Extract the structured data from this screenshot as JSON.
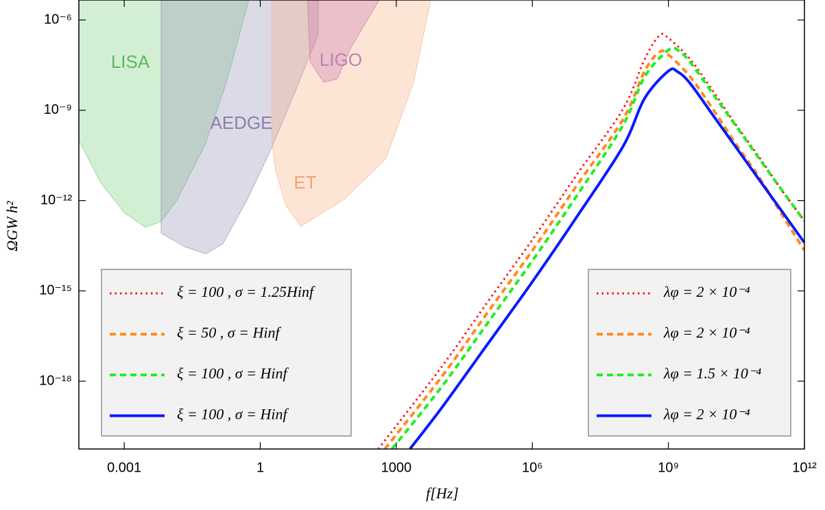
{
  "chart_data": {
    "type": "line",
    "xlabel": "f[Hz]",
    "ylabel": "ΩGW h²",
    "log_x": true,
    "log_y": true,
    "xlim": [
      0.0001,
      1000000000000
    ],
    "ylim": [
      5.6e-21,
      4.6e-06
    ],
    "xticks": [
      0.001,
      1,
      1000,
      {
        "value": 1000000,
        "label": "10⁶"
      },
      {
        "value": 1000000000,
        "label": "10⁹"
      },
      {
        "value": 1000000000000,
        "label": "10¹²"
      }
    ],
    "yticks": [
      {
        "value": 1e-06,
        "label": "10⁻⁶"
      },
      {
        "value": 1e-09,
        "label": "10⁻⁹"
      },
      {
        "value": 1e-12,
        "label": "10⁻¹²"
      },
      {
        "value": 1e-15,
        "label": "10⁻¹⁵"
      },
      {
        "value": 1e-18,
        "label": "10⁻¹⁸"
      }
    ],
    "regions": [
      {
        "name": "LISA",
        "color": "#6cc96c",
        "text_color": "#5cb85c",
        "x": [
          0.0001,
          0.0003,
          0.001,
          0.0029,
          0.0065,
          0.015,
          0.063,
          0.18,
          0.56
        ],
        "values": [
          1e-10,
          4e-12,
          4e-13,
          1.3e-13,
          2e-13,
          1.1e-12,
          8e-11,
          8.5e-09,
          4.6e-06
        ]
      },
      {
        "name": "AEDGE",
        "color": "#8f86b3",
        "text_color": "#8a80a8",
        "x": [
          0.0065,
          0.0065,
          0.022,
          0.063,
          0.15,
          0.52,
          1.8,
          6.2,
          19,
          19
        ],
        "values": [
          4.6e-06,
          8.3e-14,
          2.9e-14,
          1.7e-14,
          3.7e-14,
          1.1e-12,
          5.8e-11,
          5e-09,
          3.3e-07,
          4.6e-06
        ]
      },
      {
        "name": "ET",
        "color": "#f9a878",
        "text_color": "#f5a070",
        "x": [
          1.8,
          1.8,
          2.2,
          3.7,
          7.8,
          71,
          590,
          2400,
          5750
        ],
        "values": [
          4.6e-06,
          1e-10,
          9.3e-12,
          6.8e-13,
          1.4e-13,
          1.1e-12,
          2.5e-11,
          8.5e-09,
          4.6e-06
        ]
      },
      {
        "name": "LIGO",
        "color": "#c86aa8",
        "text_color": "#c080b0",
        "x": [
          11,
          12.6,
          25,
          50,
          100,
          420
        ],
        "values": [
          4.6e-06,
          4.1e-08,
          8.5e-09,
          1.1e-08,
          1.2e-07,
          4.6e-06
        ]
      }
    ],
    "series": [
      {
        "name": "ξ = 100 , σ = 1.25Hinf",
        "param": "λφ = 2 × 10⁻⁴",
        "color": "#ff1010",
        "style": "dotted",
        "x": [
          400,
          10000,
          100000,
          1000000,
          10000000,
          100000000,
          300000000,
          630000000,
          1000000000,
          3000000000,
          10000000000,
          30000000000,
          100000000000,
          300000000000,
          1000000000000
        ],
        "values": [
          5.6e-21,
          3e-18,
          4e-16,
          5e-14,
          8e-12,
          1.1e-09,
          5e-08,
          3e-07,
          2.5e-07,
          5e-08,
          4e-09,
          3.5e-10,
          2.8e-11,
          2.5e-12,
          2.1e-13
        ]
      },
      {
        "name": "ξ = 50 , σ = Hinf",
        "param": "λφ = 2 × 10⁻⁴",
        "color": "#ff8a1c",
        "style": "dashed",
        "x": [
          560,
          10000,
          100000,
          1000000,
          10000000,
          100000000,
          300000000,
          630000000,
          1000000000,
          3000000000,
          10000000000,
          30000000000,
          100000000000,
          300000000000,
          1000000000000
        ],
        "values": [
          5.6e-21,
          1.4e-18,
          1.8e-16,
          2.2e-14,
          3.5e-12,
          5e-10,
          2e-08,
          8.5e-08,
          7e-08,
          1.3e-08,
          1e-09,
          8e-11,
          6e-12,
          4e-13,
          2.2e-14
        ]
      },
      {
        "name": "ξ = 100 , σ = Hinf",
        "param": "λφ = 1.5 × 10⁻⁴",
        "color": "#22ee22",
        "style": "dashed",
        "x": [
          800,
          10000,
          100000,
          1000000,
          10000000,
          100000000,
          300000000,
          1000000000,
          1600000000,
          3000000000,
          10000000000,
          30000000000,
          100000000000,
          300000000000,
          1000000000000
        ],
        "values": [
          5.6e-21,
          6.5e-19,
          8e-17,
          1e-14,
          1.6e-12,
          3.2e-10,
          1.3e-08,
          1e-07,
          1e-07,
          4e-08,
          3.2e-09,
          3.2e-10,
          2.5e-11,
          2.5e-12,
          2.1e-13
        ]
      },
      {
        "name": "ξ = 100 , σ = Hinf",
        "param": "λφ = 2 × 10⁻⁴",
        "color": "#0a1aff",
        "style": "solid",
        "x": [
          2000,
          10000,
          100000,
          1000000,
          10000000,
          100000000,
          300000000,
          1000000000,
          1600000000,
          3000000000,
          10000000000,
          30000000000,
          100000000000,
          300000000000,
          1000000000000
        ],
        "values": [
          5.6e-21,
          1.3e-19,
          1.6e-17,
          2e-15,
          3.2e-13,
          6.3e-11,
          2.5e-09,
          2e-08,
          1.9e-08,
          7.9e-09,
          6.3e-10,
          6.3e-11,
          5e-12,
          5e-13,
          4e-14
        ]
      }
    ]
  }
}
